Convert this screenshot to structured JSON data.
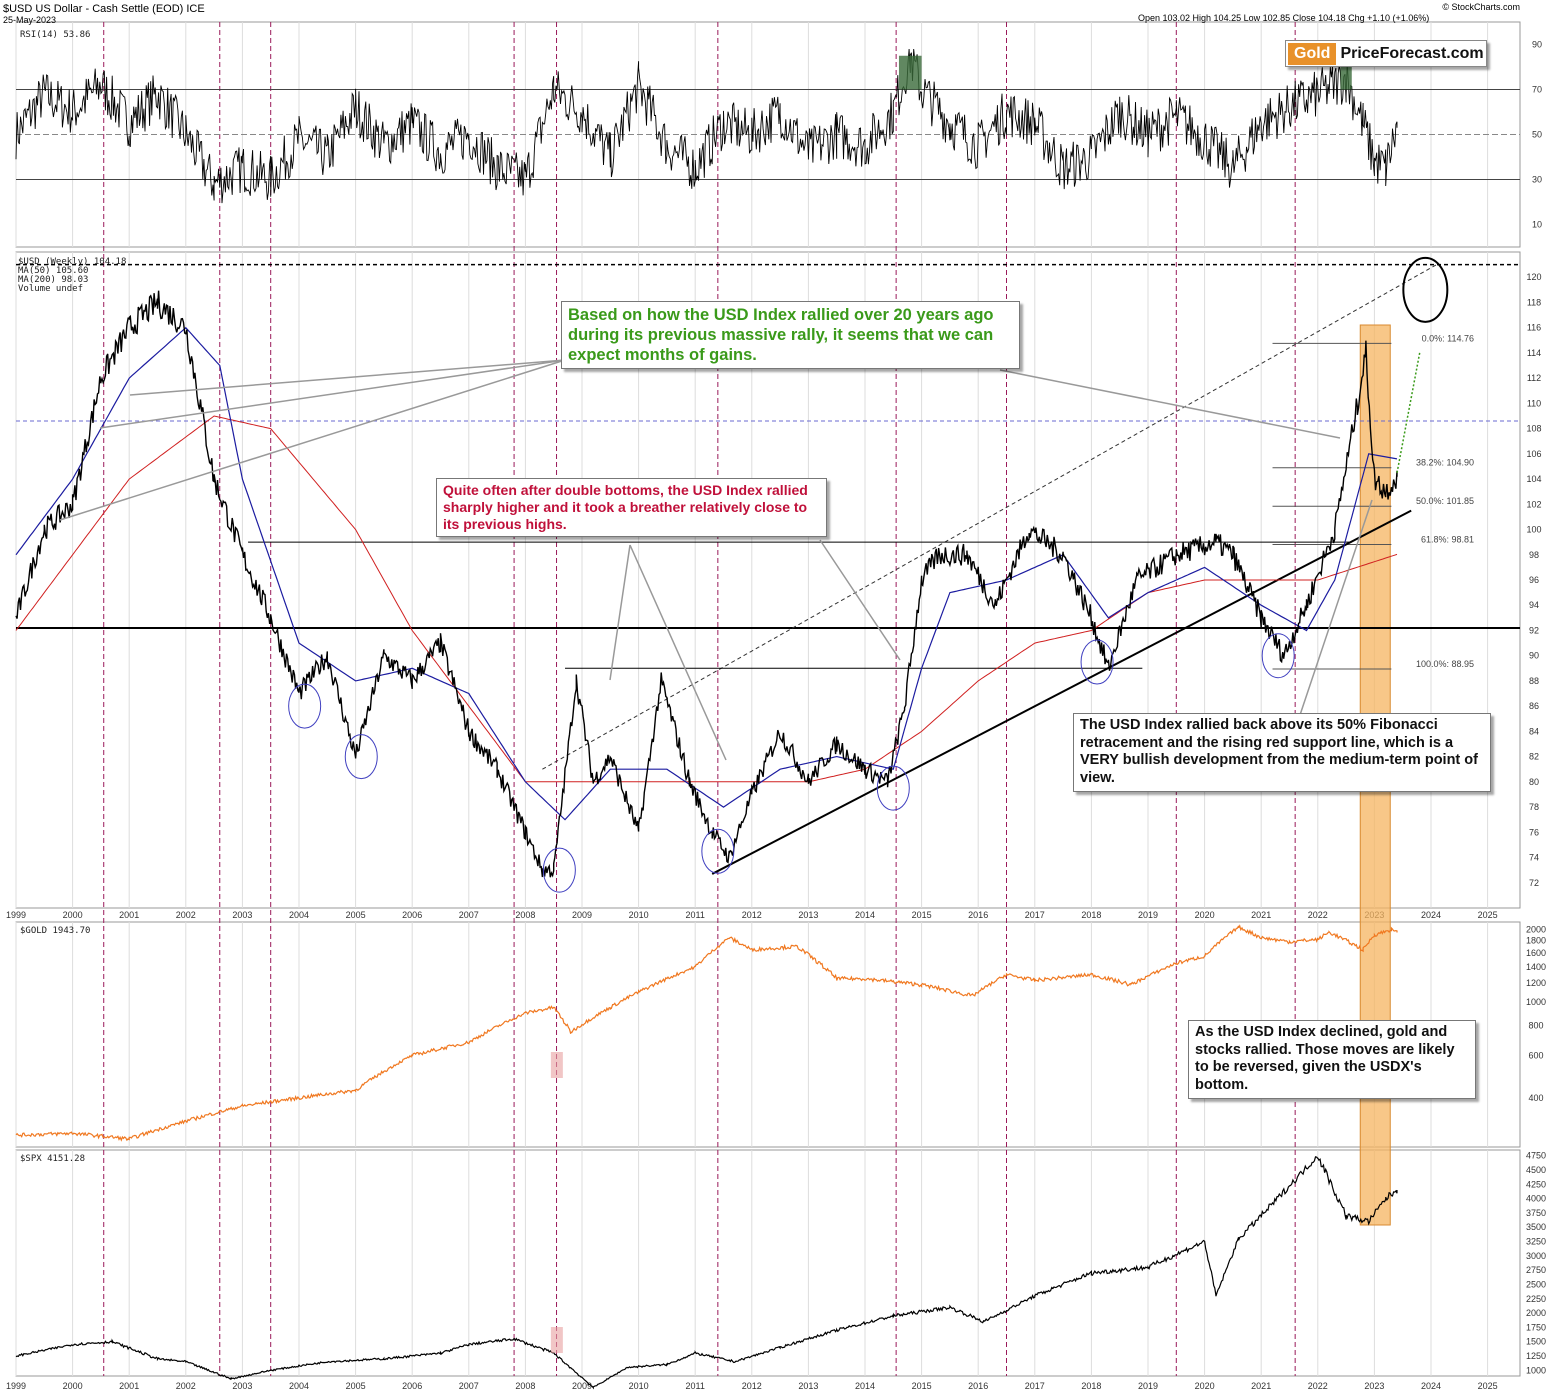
{
  "header": {
    "symbol": "$USD",
    "name": "US Dollar - Cash Settle (EOD)",
    "exchange": "ICE",
    "date": "25-May-2023",
    "ohlc": "Open 103.02  High 104.25  Low 102.85  Close 104.18  Chg +1.10 (+1.06%)",
    "credit": "© StockCharts.com"
  },
  "logo": {
    "gold": "Gold",
    "rest": "PriceForecast.com"
  },
  "annotations": {
    "green": "Based on how the USD Index rallied over 20 years ago during its previous massive rally, it seems that we can expect months of gains.",
    "red": "Quite often after double bottoms, the USD Index rallied sharply higher and it took a breather relatively close to its previous highs.",
    "black1": "The USD Index rallied back above its 50% Fibonacci retracement and the rising red support line, which is a VERY bullish development from the medium-term point of view.",
    "black2": "As the USD Index declined, gold and stocks rallied. Those moves are likely to be reversed, given the USDX's bottom."
  },
  "colors": {
    "usd_price": "#000000",
    "ma50": "#1c1ca0",
    "ma200": "#d02020",
    "gold": "#f07820",
    "spx": "#000000",
    "rsi": "#000000",
    "rsi_fill_high": "#3a6a3a",
    "rsi_fill_low": "#c07070",
    "highlight": "#f5b460",
    "grid": "#dddddd",
    "vline": "#9a1a5a"
  },
  "chart_data": [
    {
      "type": "line",
      "name": "rsi-panel",
      "legend": "RSI(14) 53.86",
      "ylim": [
        0,
        100
      ],
      "yticks": [
        10,
        30,
        50,
        70,
        90
      ],
      "levels": [
        30,
        50,
        70
      ],
      "series": [
        {
          "x": [
            1999.0,
            1999.5,
            2000.0,
            2000.5,
            2001.0,
            2001.5,
            2002.0,
            2002.5,
            2003.0,
            2003.5,
            2004.0,
            2004.5,
            2005.0,
            2005.5,
            2006.0,
            2006.5,
            2007.0,
            2007.5,
            2008.0,
            2008.5,
            2009.0,
            2009.5,
            2010.0,
            2010.5,
            2011.0,
            2011.5,
            2012.0,
            2012.5,
            2013.0,
            2013.5,
            2014.0,
            2014.5,
            2014.8,
            2015.0,
            2015.5,
            2016.0,
            2016.5,
            2017.0,
            2017.5,
            2018.0,
            2018.5,
            2019.0,
            2019.5,
            2020.0,
            2020.5,
            2021.0,
            2021.5,
            2022.0,
            2022.5,
            2022.8,
            2023.0,
            2023.2,
            2023.4
          ],
          "values": [
            50,
            68,
            60,
            72,
            55,
            68,
            50,
            28,
            35,
            30,
            48,
            40,
            62,
            45,
            55,
            42,
            50,
            35,
            30,
            70,
            60,
            40,
            72,
            45,
            35,
            55,
            50,
            60,
            42,
            50,
            45,
            60,
            85,
            70,
            55,
            45,
            60,
            55,
            35,
            40,
            60,
            50,
            58,
            48,
            35,
            55,
            62,
            68,
            75,
            55,
            38,
            35,
            53
          ]
        }
      ]
    },
    {
      "type": "line",
      "name": "usd-weekly-panel",
      "legend": [
        "$USD (Weekly) 104.18",
        "MA(50) 105.60",
        "MA(200) 98.03",
        "Volume undef"
      ],
      "ylim": [
        70,
        122
      ],
      "yticks": [
        72,
        74,
        76,
        78,
        80,
        82,
        84,
        86,
        88,
        90,
        92,
        94,
        96,
        98,
        100,
        102,
        104,
        106,
        108,
        110,
        112,
        114,
        116,
        118,
        120
      ],
      "x_ticks": [
        "1999",
        "2000",
        "2001",
        "2002",
        "2003",
        "2004",
        "2005",
        "2006",
        "2007",
        "2008",
        "2009",
        "2010",
        "2011",
        "2012",
        "2013",
        "2014",
        "2015",
        "2016",
        "2017",
        "2018",
        "2019",
        "2020",
        "2021",
        "2022",
        "2023",
        "2024",
        "2025"
      ],
      "fibonacci": [
        {
          "label": "0.0%: 114.76",
          "value": 114.76
        },
        {
          "label": "38.2%: 104.90",
          "value": 104.9
        },
        {
          "label": "50.0%: 101.85",
          "value": 101.85
        },
        {
          "label": "61.8%: 98.81",
          "value": 98.81
        },
        {
          "label": "100.0%: 88.95",
          "value": 88.95
        }
      ],
      "horizontal_levels": [
        92.2,
        108.6,
        121.0
      ],
      "series": [
        {
          "name": "$USD (Weekly)",
          "x": [
            1999.0,
            1999.5,
            2000.0,
            2000.5,
            2001.0,
            2001.5,
            2002.0,
            2002.5,
            2003.0,
            2003.5,
            2004.0,
            2004.5,
            2005.0,
            2005.5,
            2006.0,
            2006.5,
            2007.0,
            2007.5,
            2008.0,
            2008.3,
            2008.5,
            2008.9,
            2009.2,
            2009.5,
            2010.0,
            2010.4,
            2010.9,
            2011.3,
            2011.6,
            2012.0,
            2012.5,
            2013.0,
            2013.5,
            2014.0,
            2014.4,
            2014.7,
            2015.0,
            2015.3,
            2015.8,
            2016.3,
            2016.9,
            2017.5,
            2018.0,
            2018.3,
            2018.8,
            2019.5,
            2020.2,
            2020.5,
            2021.0,
            2021.4,
            2021.8,
            2022.3,
            2022.7,
            2022.85,
            2023.0,
            2023.2,
            2023.4
          ],
          "values": [
            93,
            100,
            102,
            112,
            116,
            118,
            116,
            104,
            98,
            93,
            87,
            90,
            82,
            90,
            88,
            91,
            84,
            81,
            76,
            73,
            73,
            88,
            80,
            82,
            76,
            88,
            80,
            76,
            74,
            79,
            84,
            80,
            83,
            81,
            80,
            86,
            96,
            98,
            98,
            94,
            100,
            98,
            93,
            89,
            96,
            98,
            99,
            98,
            93,
            90,
            94,
            100,
            110,
            114,
            104,
            103,
            104.18
          ]
        },
        {
          "name": "MA(50)",
          "x": [
            1999.0,
            2000.0,
            2001.0,
            2002.0,
            2002.6,
            2003.0,
            2004.0,
            2005.0,
            2006.0,
            2007.0,
            2008.0,
            2008.7,
            2009.5,
            2010.5,
            2011.5,
            2012.5,
            2013.5,
            2014.5,
            2015.0,
            2015.5,
            2016.5,
            2017.5,
            2018.3,
            2019.0,
            2020.0,
            2021.0,
            2021.8,
            2022.3,
            2022.9,
            2023.4
          ],
          "values": [
            98,
            104,
            112,
            116,
            113,
            104,
            91,
            88,
            89,
            87,
            80,
            77,
            81,
            81,
            78,
            81,
            82,
            81,
            89,
            95,
            96,
            98,
            93,
            95,
            97,
            94,
            92,
            96,
            106,
            105.6
          ]
        },
        {
          "name": "MA(200)",
          "x": [
            1999.0,
            2001.0,
            2002.5,
            2003.5,
            2005.0,
            2006.0,
            2007.0,
            2008.0,
            2009.0,
            2010.0,
            2011.0,
            2012.0,
            2013.0,
            2014.0,
            2015.0,
            2016.0,
            2017.0,
            2018.0,
            2019.0,
            2020.0,
            2021.0,
            2022.0,
            2023.4
          ],
          "values": [
            92,
            104,
            109,
            108,
            100,
            92,
            86,
            80,
            80,
            80,
            80,
            80,
            80,
            81,
            84,
            88,
            91,
            92,
            95,
            96,
            96,
            96,
            98.03
          ]
        }
      ]
    },
    {
      "type": "line",
      "name": "gold-panel",
      "legend": "$GOLD 1943.70",
      "yticks": [
        400,
        600,
        800,
        1000,
        1200,
        1400,
        1600,
        1800,
        2000
      ],
      "scale": "log",
      "series": [
        {
          "name": "$GOLD",
          "x": [
            1999.0,
            2000.0,
            2001.0,
            2002.0,
            2003.0,
            2004.0,
            2005.0,
            2006.0,
            2007.0,
            2008.0,
            2008.5,
            2008.8,
            2009.5,
            2010.0,
            2011.0,
            2011.6,
            2012.0,
            2012.8,
            2013.5,
            2014.0,
            2015.0,
            2015.9,
            2016.5,
            2017.0,
            2018.0,
            2018.7,
            2019.5,
            2020.0,
            2020.6,
            2021.0,
            2021.5,
            2022.0,
            2022.2,
            2022.8,
            2023.0,
            2023.3,
            2023.4
          ],
          "values": [
            280,
            285,
            270,
            320,
            370,
            400,
            430,
            600,
            680,
            900,
            950,
            750,
            950,
            1100,
            1400,
            1850,
            1650,
            1700,
            1250,
            1250,
            1180,
            1060,
            1300,
            1230,
            1300,
            1180,
            1450,
            1550,
            2050,
            1850,
            1780,
            1820,
            1950,
            1650,
            1900,
            2000,
            1943.7
          ]
        }
      ]
    },
    {
      "type": "line",
      "name": "spx-panel",
      "legend": "$SPX 4151.28",
      "yticks": [
        1000,
        1250,
        1500,
        1750,
        2000,
        2250,
        2500,
        2750,
        3000,
        3250,
        3500,
        3750,
        4000,
        4250,
        4500,
        4750
      ],
      "series": [
        {
          "name": "$SPX",
          "x": [
            1999.0,
            2000.0,
            2000.7,
            2001.5,
            2002.0,
            2002.8,
            2003.5,
            2004.5,
            2005.5,
            2006.5,
            2007.0,
            2007.8,
            2008.5,
            2009.2,
            2009.8,
            2010.5,
            2011.0,
            2011.7,
            2012.5,
            2013.5,
            2014.5,
            2015.5,
            2016.1,
            2017.0,
            2018.0,
            2019.0,
            2020.0,
            2020.2,
            2020.6,
            2021.0,
            2022.0,
            2022.5,
            2022.9,
            2023.2,
            2023.4
          ],
          "values": [
            1250,
            1450,
            1500,
            1200,
            1150,
            850,
            1000,
            1150,
            1200,
            1300,
            1450,
            1550,
            1300,
            700,
            1050,
            1100,
            1300,
            1150,
            1400,
            1700,
            1950,
            2100,
            1850,
            2300,
            2700,
            2800,
            3250,
            2300,
            3300,
            3700,
            4750,
            3700,
            3600,
            4000,
            4151.28
          ]
        }
      ]
    }
  ],
  "x_axis_years": [
    "1999",
    "2000",
    "2001",
    "2002",
    "2003",
    "2004",
    "2005",
    "2006",
    "2007",
    "2008",
    "2009",
    "2010",
    "2011",
    "2012",
    "2013",
    "2014",
    "2015",
    "2016",
    "2017",
    "2018",
    "2019",
    "2020",
    "2021",
    "2022",
    "2023",
    "2024",
    "2025"
  ]
}
